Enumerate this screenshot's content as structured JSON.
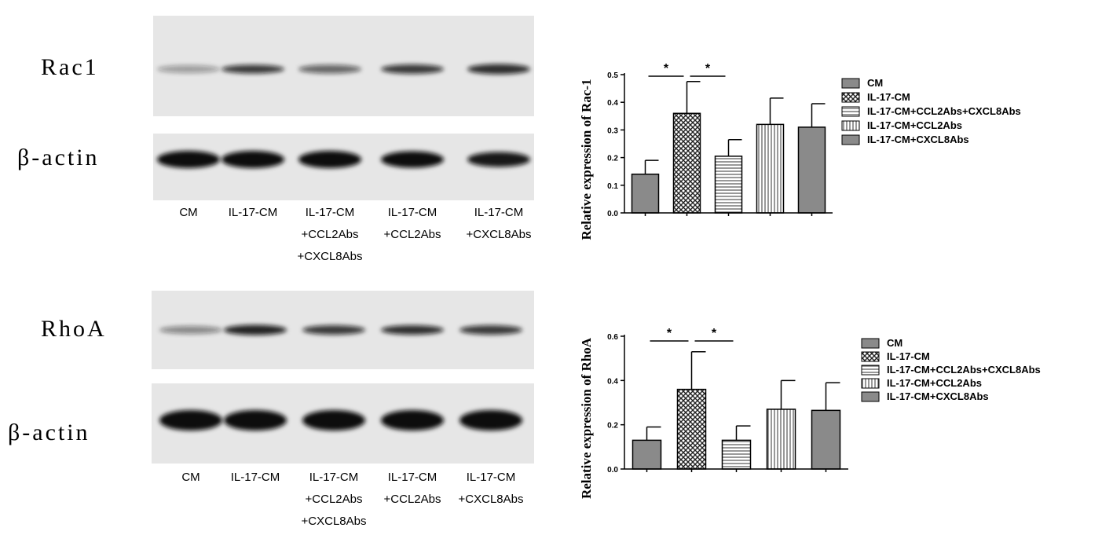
{
  "blots": [
    {
      "rows": [
        "Rac1",
        "β-actin"
      ],
      "lanes": [
        [
          "CM"
        ],
        [
          "IL-17-CM"
        ],
        [
          "IL-17-CM",
          "+CCL2Abs",
          "+CXCL8Abs"
        ],
        [
          "IL-17-CM",
          "+CCL2Abs"
        ],
        [
          "IL-17-CM",
          "+CXCL8Abs"
        ]
      ]
    },
    {
      "rows": [
        "RhoA",
        "β-actin"
      ],
      "lanes": [
        [
          "CM"
        ],
        [
          "IL-17-CM"
        ],
        [
          "IL-17-CM",
          "+CCL2Abs",
          "+CXCL8Abs"
        ],
        [
          "IL-17-CM",
          "+CCL2Abs"
        ],
        [
          "IL-17-CM",
          "+CXCL8Abs"
        ]
      ]
    }
  ],
  "chart_data": [
    {
      "type": "bar",
      "y_label": "Relative expression of Rac-1",
      "categories": [
        "CM",
        "IL-17-CM",
        "IL-17-CM+CCL2Abs+CXCL8Abs",
        "IL-17-CM+CCL2Abs",
        "IL-17-CM+CXCL8Abs"
      ],
      "values": [
        0.14,
        0.36,
        0.205,
        0.32,
        0.31
      ],
      "errors": [
        0.05,
        0.115,
        0.06,
        0.095,
        0.085
      ],
      "patterns": [
        "solid",
        "crosshatch",
        "horizontal",
        "vertical",
        "solid"
      ],
      "color": "#8a8a8a",
      "ylim": [
        0,
        0.5
      ],
      "yticks": [
        {
          "value": 0,
          "label": "0.0"
        },
        0.1,
        0.2,
        0.3,
        0.4,
        0.5
      ],
      "annotations": [
        "*",
        "*"
      ]
    },
    {
      "type": "bar",
      "y_label": "Relative expression of RhoA",
      "categories": [
        "CM",
        "IL-17-CM",
        "IL-17-CM+CCL2Abs+CXCL8Abs",
        "IL-17-CM+CCL2Abs",
        "IL-17-CM+CXCL8Abs"
      ],
      "values": [
        0.13,
        0.36,
        0.13,
        0.27,
        0.265
      ],
      "errors": [
        0.06,
        0.17,
        0.065,
        0.13,
        0.125
      ],
      "patterns": [
        "solid",
        "crosshatch",
        "horizontal",
        "vertical",
        "solid"
      ],
      "color": "#8a8a8a",
      "ylim": [
        0,
        0.6
      ],
      "yticks": [
        {
          "value": 0,
          "label": "0.0"
        },
        0.2,
        0.4,
        0.6
      ],
      "annotations": [
        "*",
        "*"
      ]
    }
  ]
}
